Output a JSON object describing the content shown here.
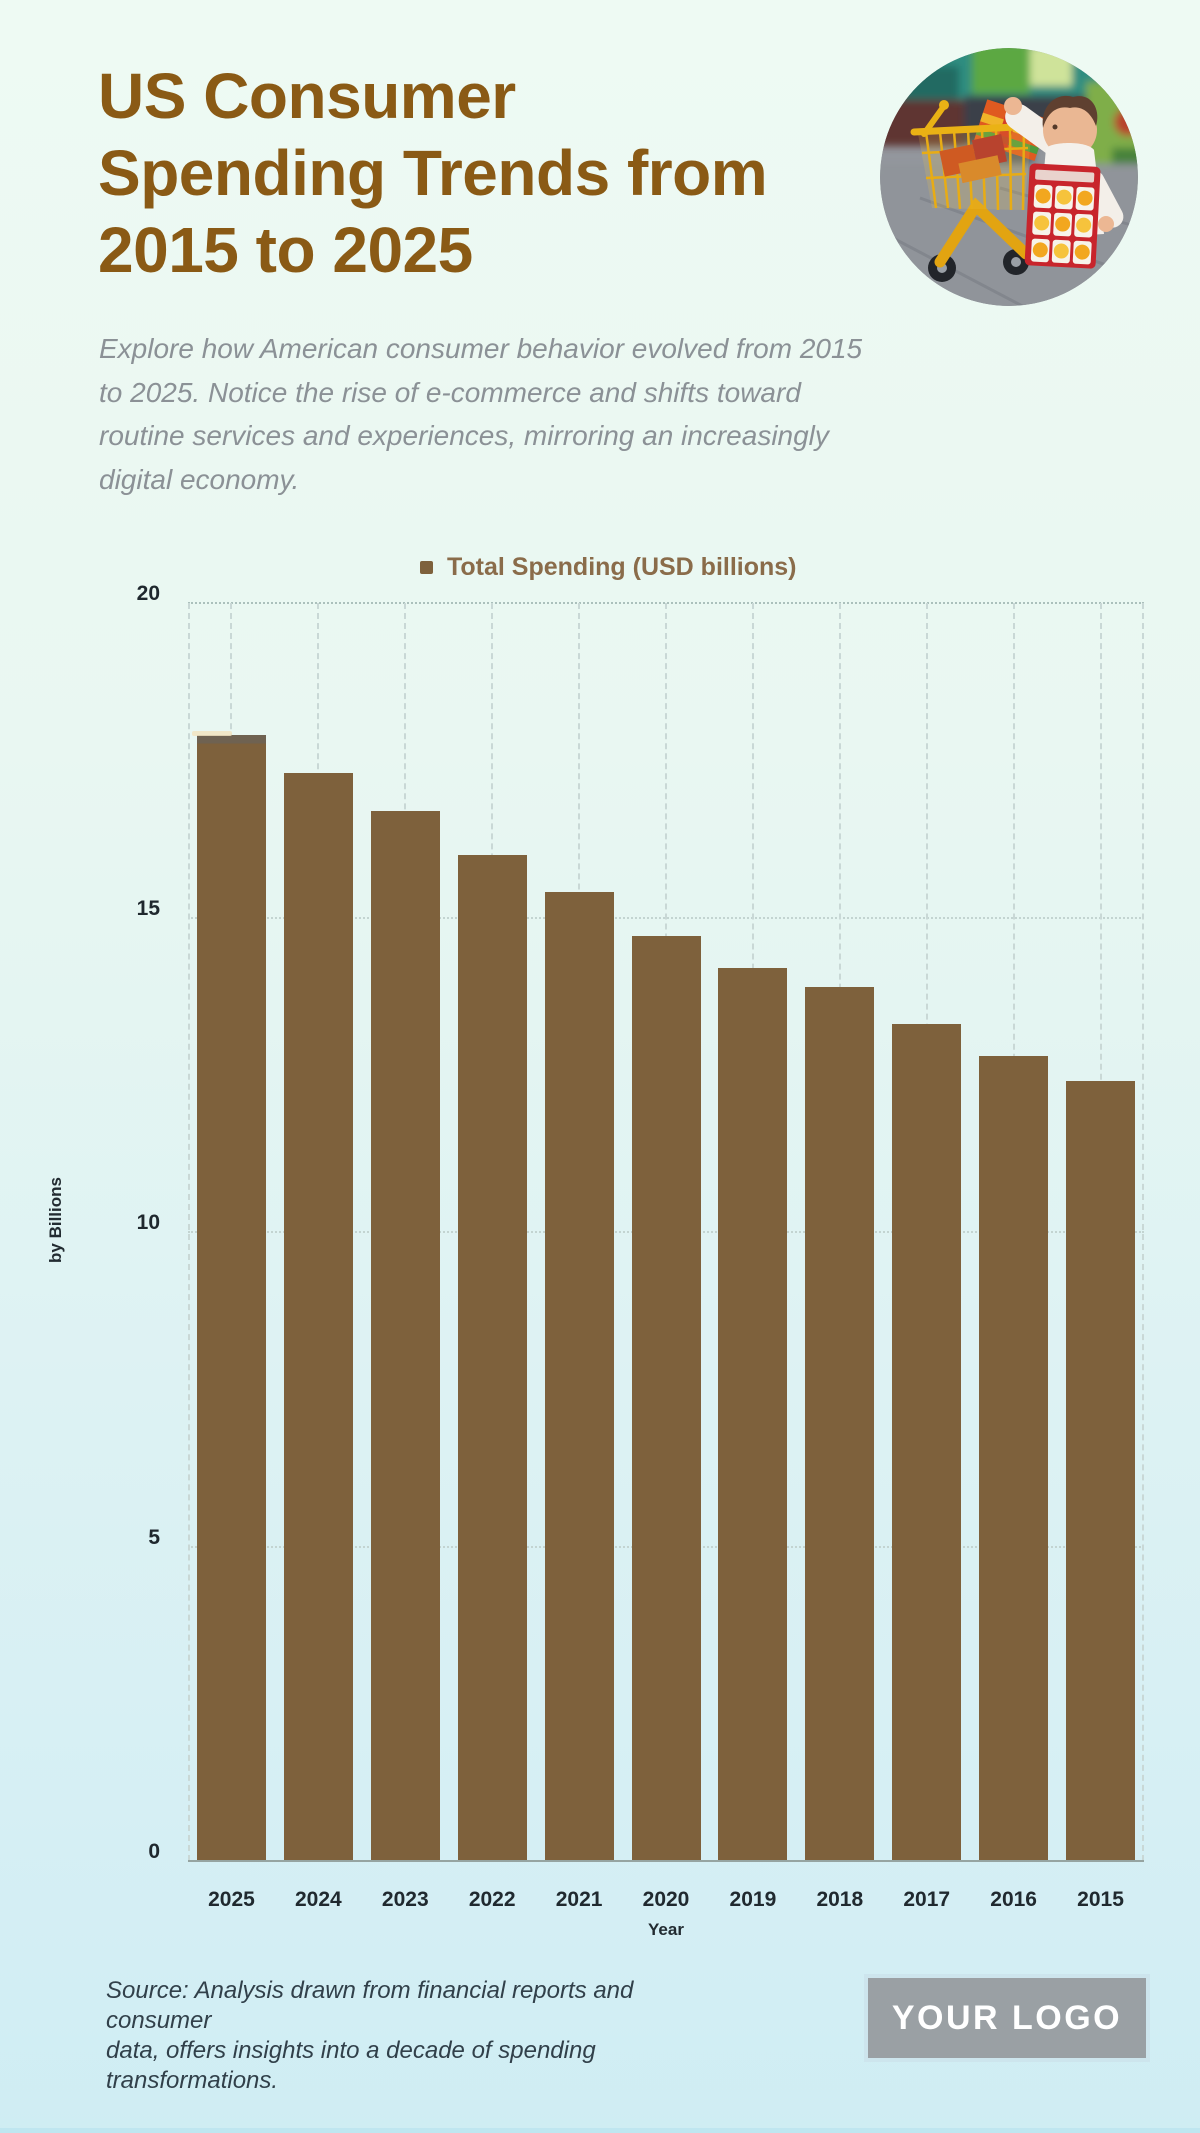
{
  "header": {
    "title_lines": [
      "US Consumer",
      "Spending Trends from",
      "2015 to 2025"
    ],
    "subtitle_lines": [
      "Explore how American consumer behavior evolved from 2015",
      "to 2025. Notice the rise of e-commerce and shifts toward",
      "routine services and experiences, mirroring an increasingly",
      "digital economy."
    ]
  },
  "chart_data": {
    "type": "bar",
    "legend_label": "Total Spending (USD billions)",
    "categories": [
      "2025",
      "2024",
      "2023",
      "2022",
      "2021",
      "2020",
      "2019",
      "2018",
      "2017",
      "2016",
      "2015"
    ],
    "values": [
      17.9,
      17.3,
      16.7,
      16.0,
      15.4,
      14.7,
      14.2,
      13.9,
      13.3,
      12.8,
      12.4
    ],
    "xlabel": "Year",
    "ylabel": "by Billions",
    "yticks": [
      0,
      5,
      10,
      15,
      20
    ],
    "ylim": [
      0,
      20
    ],
    "grid": true,
    "legend_position": "top",
    "bar_color": "#7e613c"
  },
  "footer": {
    "source_lines": [
      "Source: Analysis drawn from financial reports and consumer",
      "data, offers insights into a decade of spending transformations."
    ],
    "logo_text": "YOUR LOGO"
  },
  "colors": {
    "title_brown": "#8a5a15",
    "legend_brown": "#8a6c4a",
    "bar_brown": "#7e613c",
    "axis_text_dark": "#20292f",
    "subtitle_gray": "#8b9196",
    "source_dark": "#31404a",
    "background_top": "#eefaf3",
    "background_bottom": "#cfedf3",
    "gridline": "#c3d4d1",
    "logo_box_gray": "#9aa0a4",
    "logo_border": "#cde5ed",
    "logo_text_white": "#ffffff"
  }
}
